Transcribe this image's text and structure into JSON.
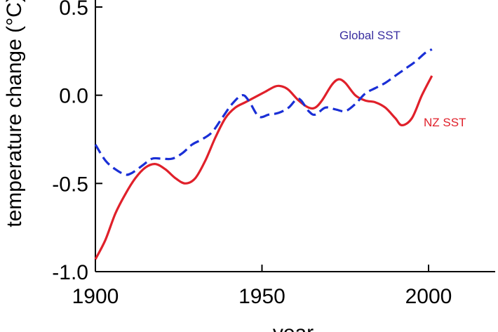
{
  "chart_data": {
    "type": "line",
    "title": "",
    "xlabel": "year",
    "ylabel": "temperature change (°C)",
    "xlim": [
      1900,
      2020
    ],
    "ylim": [
      -1.0,
      0.5
    ],
    "xticks": [
      1900,
      1950,
      2000
    ],
    "yticks": [
      0.5,
      0.0,
      -0.5,
      -1.0
    ],
    "xtick_labels": [
      "1900",
      "1950",
      "2000"
    ],
    "ytick_labels": [
      "0.5",
      "0.0",
      "-0.5",
      "-1.0"
    ],
    "series": [
      {
        "name": "NZ SST",
        "color": "#e0202a",
        "style": "solid",
        "x": [
          1900,
          1903,
          1906,
          1909,
          1912,
          1915,
          1918,
          1921,
          1924,
          1927,
          1930,
          1933,
          1936,
          1939,
          1942,
          1945,
          1948,
          1951,
          1954,
          1956,
          1958,
          1961,
          1964,
          1966,
          1968,
          1971,
          1973,
          1975,
          1978,
          1981,
          1984,
          1987,
          1990,
          1992,
          1995,
          1998,
          2001
        ],
        "values": [
          -0.93,
          -0.82,
          -0.67,
          -0.56,
          -0.47,
          -0.41,
          -0.39,
          -0.42,
          -0.47,
          -0.5,
          -0.47,
          -0.37,
          -0.24,
          -0.13,
          -0.07,
          -0.04,
          -0.01,
          0.02,
          0.05,
          0.05,
          0.03,
          -0.03,
          -0.07,
          -0.07,
          -0.03,
          0.06,
          0.09,
          0.07,
          0.0,
          -0.03,
          -0.04,
          -0.07,
          -0.13,
          -0.17,
          -0.13,
          0.0,
          0.11
        ]
      },
      {
        "name": "Global SST",
        "color": "#1a2fd6",
        "style": "dashed",
        "x": [
          1900,
          1903,
          1906,
          1909,
          1911,
          1914,
          1917,
          1920,
          1923,
          1926,
          1929,
          1932,
          1935,
          1938,
          1941,
          1944,
          1946,
          1949,
          1952,
          1955,
          1958,
          1961,
          1964,
          1966,
          1969,
          1972,
          1975,
          1978,
          1981,
          1984,
          1987,
          1990,
          1993,
          1996,
          1999,
          2001
        ],
        "values": [
          -0.28,
          -0.37,
          -0.42,
          -0.45,
          -0.44,
          -0.4,
          -0.36,
          -0.36,
          -0.36,
          -0.33,
          -0.28,
          -0.25,
          -0.21,
          -0.13,
          -0.05,
          0.0,
          -0.03,
          -0.12,
          -0.11,
          -0.1,
          -0.07,
          -0.02,
          -0.09,
          -0.11,
          -0.07,
          -0.08,
          -0.09,
          -0.05,
          0.01,
          0.04,
          0.07,
          0.11,
          0.15,
          0.19,
          0.24,
          0.26
        ]
      }
    ],
    "annotations": [
      {
        "text": "Global SST",
        "series": "Global SST"
      },
      {
        "text": "NZ SST",
        "series": "NZ SST"
      }
    ]
  }
}
